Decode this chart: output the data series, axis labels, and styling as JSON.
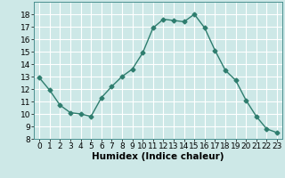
{
  "xlabel": "Humidex (Indice chaleur)",
  "x": [
    0,
    1,
    2,
    3,
    4,
    5,
    6,
    7,
    8,
    9,
    10,
    11,
    12,
    13,
    14,
    15,
    16,
    17,
    18,
    19,
    20,
    21,
    22,
    23
  ],
  "y": [
    12.9,
    11.9,
    10.7,
    10.1,
    10.0,
    9.8,
    11.3,
    12.2,
    13.0,
    13.6,
    14.9,
    16.9,
    17.6,
    17.5,
    17.4,
    18.0,
    16.9,
    15.1,
    13.5,
    12.7,
    11.1,
    9.8,
    8.8,
    8.5
  ],
  "line_color": "#2e7d6e",
  "marker": "D",
  "marker_size": 2.5,
  "bg_color": "#cde8e7",
  "grid_color": "#ffffff",
  "ylim": [
    8,
    19
  ],
  "yticks": [
    8,
    9,
    10,
    11,
    12,
    13,
    14,
    15,
    16,
    17,
    18
  ],
  "xlim": [
    -0.5,
    23.5
  ],
  "xticks": [
    0,
    1,
    2,
    3,
    4,
    5,
    6,
    7,
    8,
    9,
    10,
    11,
    12,
    13,
    14,
    15,
    16,
    17,
    18,
    19,
    20,
    21,
    22,
    23
  ],
  "label_fontsize": 7.5,
  "tick_fontsize": 6.5
}
